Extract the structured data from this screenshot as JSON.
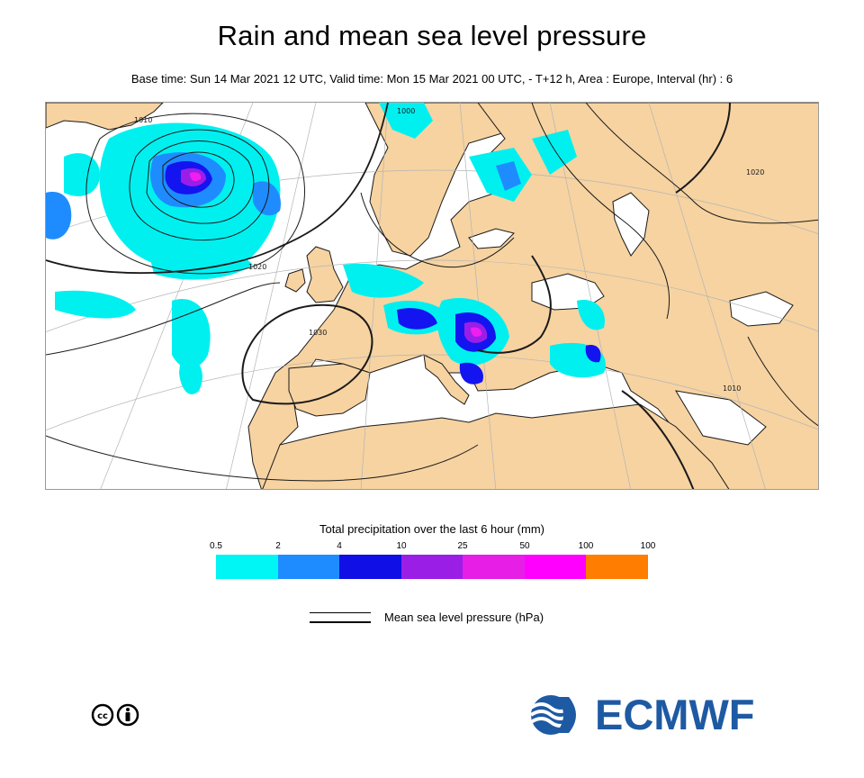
{
  "header": {
    "title": "Rain and mean sea level pressure",
    "subtitle": "Base time: Sun 14 Mar 2021 12 UTC, Valid time: Mon 15 Mar 2021 00 UTC, - T+12 h, Area : Europe, Interval (hr) : 6"
  },
  "map": {
    "area": "Europe",
    "land_color": "#f6d3a1",
    "sea_color": "#ffffff",
    "isobar_labels": [
      "1000",
      "1010",
      "1020",
      "1030"
    ],
    "precip_blobs": [
      {
        "class": "0.5-2",
        "color": "#00f0f0"
      },
      {
        "class": "2-4",
        "color": "#1e8cff"
      },
      {
        "class": "4-10",
        "color": "#1414f0"
      },
      {
        "class": "10-25",
        "color": "#9b1ee6"
      },
      {
        "class": "25-50",
        "color": "#f01ef0"
      }
    ]
  },
  "legend": {
    "title": "Total precipitation over the last 6 hour (mm)",
    "ticks": [
      "0.5",
      "2",
      "4",
      "10",
      "25",
      "50",
      "100",
      "100"
    ],
    "colors": [
      "#00f5f5",
      "#1e8cff",
      "#0f0fe6",
      "#9b1ee6",
      "#e61ee6",
      "#ff00ff",
      "#ff7d00",
      "#ff0000"
    ],
    "pressure_label": "Mean sea level pressure (hPa)"
  },
  "footer": {
    "license_icon": "cc-by-icon",
    "logo_icon": "ecmwf-logo-icon",
    "logo_text": "ECMWF",
    "logo_color": "#1e5aa3"
  }
}
